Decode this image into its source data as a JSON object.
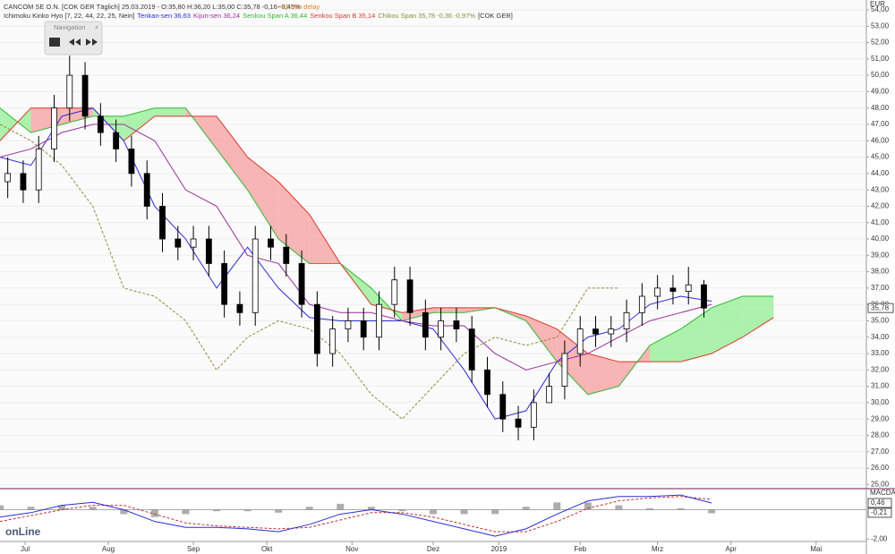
{
  "chart_data": {
    "type": "candlestick",
    "header": {
      "line1": "CANCOM SE O.N. [COK GER Täglich] 25.03.2019 - O:35,80 H:36,20 L:35,00 C:35,78 -0,16 -0,45%",
      "delay": "• 15 min delay",
      "indicator": "Ichimoku Kinko Hyo [7, 22, 44, 22, 25, Nein]",
      "tenkan": "Tenkan-sen 36,63",
      "kijun": "Kijun-sen 36,24",
      "spanA": "Senkou Span A 36,44",
      "spanB": "Senkou Span B 35,14",
      "chikou": "Chikou Span 35,78 -0,36 -0,97%",
      "symbol": "[COK GER]"
    },
    "navigation": "Navigation",
    "currency": "EUR",
    "logo": "onLine",
    "current_price": {
      "value": 35.78,
      "label": "35,78"
    },
    "xlim": [
      0,
      224
    ],
    "xticks": [
      {
        "value": 6.5,
        "label": "Jul"
      },
      {
        "value": 28,
        "label": "Aug"
      },
      {
        "value": 50,
        "label": "Sep"
      },
      {
        "value": 69,
        "label": "Okt"
      },
      {
        "value": 91,
        "label": "Nov"
      },
      {
        "value": 112,
        "label": "Dez"
      },
      {
        "value": 129,
        "label": "2019"
      },
      {
        "value": 150,
        "label": "Feb"
      },
      {
        "value": 170,
        "label": "Mrz"
      },
      {
        "value": 189,
        "label": "Apr"
      },
      {
        "value": 211,
        "label": "Mai"
      }
    ],
    "ylim": [
      24.8,
      54.6
    ],
    "yticks": [
      {
        "value": 25,
        "label": "25,00"
      },
      {
        "value": 26,
        "label": "26,00"
      },
      {
        "value": 27,
        "label": "27,00"
      },
      {
        "value": 28,
        "label": "28,00"
      },
      {
        "value": 29,
        "label": "29,00"
      },
      {
        "value": 30,
        "label": "30,00"
      },
      {
        "value": 31,
        "label": "31,00"
      },
      {
        "value": 32,
        "label": "32,00"
      },
      {
        "value": 33,
        "label": "33,00"
      },
      {
        "value": 34,
        "label": "34,00"
      },
      {
        "value": 35,
        "label": "35,00"
      },
      {
        "value": 36,
        "label": "36,00"
      },
      {
        "value": 37,
        "label": "37,00"
      },
      {
        "value": 38,
        "label": "38,00"
      },
      {
        "value": 39,
        "label": "39,00"
      },
      {
        "value": 40,
        "label": "40,00"
      },
      {
        "value": 41,
        "label": "41,00"
      },
      {
        "value": 42,
        "label": "42,00"
      },
      {
        "value": 43,
        "label": "43,00"
      },
      {
        "value": 44,
        "label": "44,00"
      },
      {
        "value": 45,
        "label": "45,00"
      },
      {
        "value": 46,
        "label": "46,00"
      },
      {
        "value": 47,
        "label": "47,00"
      },
      {
        "value": 48,
        "label": "48,00"
      },
      {
        "value": 49,
        "label": "49,00"
      },
      {
        "value": 50,
        "label": "50,00"
      },
      {
        "value": 51,
        "label": "51,00"
      },
      {
        "value": 52,
        "label": "52,00"
      },
      {
        "value": 53,
        "label": "53,00"
      },
      {
        "value": 54,
        "label": "54,00"
      }
    ],
    "grid": true,
    "candles": {
      "x": [
        2,
        6,
        10,
        14,
        18,
        22,
        26,
        30,
        34,
        38,
        42,
        46,
        50,
        54,
        58,
        62,
        66,
        70,
        74,
        78,
        82,
        86,
        90,
        94,
        98,
        102,
        106,
        110,
        114,
        118,
        122,
        126,
        130,
        134,
        138,
        142,
        146,
        150,
        154,
        158,
        162,
        166,
        170,
        174,
        178,
        182
      ],
      "open": [
        43.5,
        44,
        43,
        45.5,
        48,
        50,
        47.5,
        46.5,
        45.5,
        44,
        42,
        40,
        39.5,
        40,
        38.5,
        36,
        35.5,
        40,
        39.5,
        38.5,
        36,
        33,
        34.5,
        35,
        34,
        36,
        37.5,
        35.5,
        34,
        35,
        34.5,
        32,
        30.5,
        29,
        28.5,
        30,
        31,
        33,
        34.5,
        34.2,
        34.5,
        35.5,
        36.5,
        37,
        36.8,
        37.2
      ],
      "high": [
        45,
        44.8,
        46.3,
        48.8,
        51.2,
        50.8,
        48.3,
        47.3,
        46.3,
        44.8,
        42.8,
        40.8,
        40.8,
        40.8,
        39.3,
        36.8,
        40.8,
        40.8,
        40.3,
        39.3,
        36.8,
        35.3,
        35.8,
        35.8,
        36.8,
        38.3,
        38.3,
        36.3,
        35.8,
        35.8,
        35.3,
        32.8,
        31.3,
        29.8,
        30.8,
        31.8,
        33.8,
        35.3,
        35.3,
        35.3,
        36.3,
        37.3,
        37.8,
        37.8,
        38.3,
        37.5
      ],
      "low": [
        42.5,
        42.2,
        42.2,
        44.7,
        47.2,
        46.7,
        45.7,
        44.7,
        43.2,
        41.2,
        39.2,
        38.7,
        38.7,
        37.7,
        35.2,
        34.7,
        34.7,
        38.7,
        37.7,
        35.2,
        32.2,
        32.2,
        33.7,
        33.2,
        33.2,
        35.2,
        34.7,
        33.2,
        33.2,
        33.7,
        31.2,
        29.7,
        28.2,
        27.7,
        27.7,
        30.2,
        30.2,
        32.2,
        33.4,
        33.4,
        33.7,
        34.7,
        35.7,
        36,
        36,
        35.2
      ],
      "close": [
        44,
        43,
        45.5,
        48,
        50,
        47.5,
        46.5,
        45.5,
        44,
        42,
        40,
        39.5,
        40,
        38.5,
        36,
        35.5,
        40,
        39.5,
        38.5,
        36,
        33,
        34.5,
        35,
        34,
        36,
        37.5,
        35.5,
        34,
        35,
        34.5,
        32,
        30.5,
        29,
        28.5,
        30,
        31,
        33,
        34.5,
        34.2,
        34.5,
        35.5,
        36.5,
        37,
        36.8,
        37.2,
        35.78
      ]
    },
    "lines_x": [
      0,
      8,
      16,
      24,
      32,
      40,
      48,
      56,
      64,
      72,
      80,
      88,
      96,
      104,
      112,
      120,
      128,
      136,
      144,
      152,
      160,
      168,
      176,
      184
    ],
    "series": [
      {
        "name": "Tenkan-sen",
        "color": "#2b2bd9",
        "values": [
          45,
          44.5,
          47.5,
          48,
          46,
          42,
          40,
          37,
          39.5,
          37,
          35.2,
          35,
          35,
          35,
          34.5,
          32,
          29,
          29.5,
          32.5,
          34,
          34.5,
          36,
          36.5,
          36.2
        ]
      },
      {
        "name": "Kijun-sen",
        "color": "#9b2f9b",
        "values": [
          45,
          45.5,
          46.5,
          47,
          47,
          46,
          43,
          42,
          39,
          38.5,
          36,
          35.5,
          35.5,
          35,
          34.7,
          34.7,
          33,
          32,
          32.5,
          33,
          34,
          35,
          35.5,
          36
        ]
      }
    ],
    "cloud": {
      "x": [
        0,
        8,
        16,
        24,
        32,
        40,
        48,
        56,
        64,
        72,
        80,
        88,
        96,
        104,
        112,
        120,
        128,
        136,
        144,
        152,
        160,
        168,
        176,
        184,
        192,
        200
      ],
      "span_a": {
        "name": "Senkou Span A",
        "color": "#33b633",
        "values": [
          48,
          46.5,
          47,
          47.5,
          47.5,
          48,
          48,
          45.5,
          43,
          40,
          38.5,
          38.5,
          37,
          35,
          35.5,
          35.5,
          35.8,
          35,
          32.5,
          30.5,
          31,
          33.5,
          34.5,
          35.8,
          36.5,
          36.5
        ]
      },
      "span_b": {
        "name": "Senkou Span B",
        "color": "#d93a2b",
        "values": [
          46,
          48,
          48,
          48,
          46,
          47.5,
          47.5,
          47.5,
          45,
          43.5,
          41.5,
          38.5,
          36,
          35.5,
          35.8,
          35.8,
          35.8,
          35.3,
          34.5,
          33,
          32.5,
          32.5,
          32.5,
          33,
          34,
          35.2
        ]
      }
    },
    "chikou": {
      "name": "Chikou Span",
      "color": "#8a8a3a",
      "x": [
        0,
        8,
        16,
        24,
        32,
        40,
        48,
        56,
        64,
        72,
        80,
        88,
        96,
        104,
        112,
        120,
        128,
        136,
        144,
        152,
        160
      ],
      "values": [
        47,
        46,
        44.5,
        42,
        37,
        36.5,
        35,
        32,
        34,
        35,
        34.5,
        33,
        30.5,
        29,
        31,
        33,
        34,
        33.5,
        34,
        37,
        37
      ]
    },
    "macd": {
      "title": "MACDA",
      "ylim": [
        -2.16,
        1.31
      ],
      "yticks": [
        {
          "value": -2,
          "label": "-2,00"
        }
      ],
      "current_labels": [
        {
          "value": 0.46,
          "label": "0,46"
        },
        {
          "value": -0.21,
          "label": "-0,21"
        }
      ],
      "macd": {
        "color": "#2b2bd9",
        "values": [
          -0.5,
          -0.2,
          0.3,
          0.5,
          0,
          -0.8,
          -1.2,
          -1.2,
          -1.3,
          -1.5,
          -1,
          -0.3,
          0,
          -0.3,
          -0.8,
          -1.3,
          -1.8,
          -1.3,
          -0.3,
          0.6,
          0.9,
          0.9,
          1,
          0.46
        ]
      },
      "signal": {
        "color": "#c03030",
        "values": [
          -0.8,
          -0.4,
          0,
          0.3,
          0.3,
          -0.3,
          -0.9,
          -1.1,
          -1.2,
          -1.3,
          -1.2,
          -0.7,
          -0.2,
          -0.2,
          -0.5,
          -1,
          -1.5,
          -1.5,
          -0.8,
          0.1,
          0.6,
          0.8,
          0.9,
          0.7
        ]
      },
      "histogram": {
        "color": "#777777",
        "values": [
          0.3,
          0.2,
          0.3,
          0.2,
          -0.3,
          -0.5,
          -0.3,
          -0.1,
          -0.1,
          -0.2,
          0.2,
          0.4,
          0.2,
          -0.1,
          -0.3,
          -0.3,
          -0.3,
          0.2,
          0.5,
          0.5,
          0.3,
          0.1,
          0.1,
          -0.24
        ]
      }
    }
  }
}
